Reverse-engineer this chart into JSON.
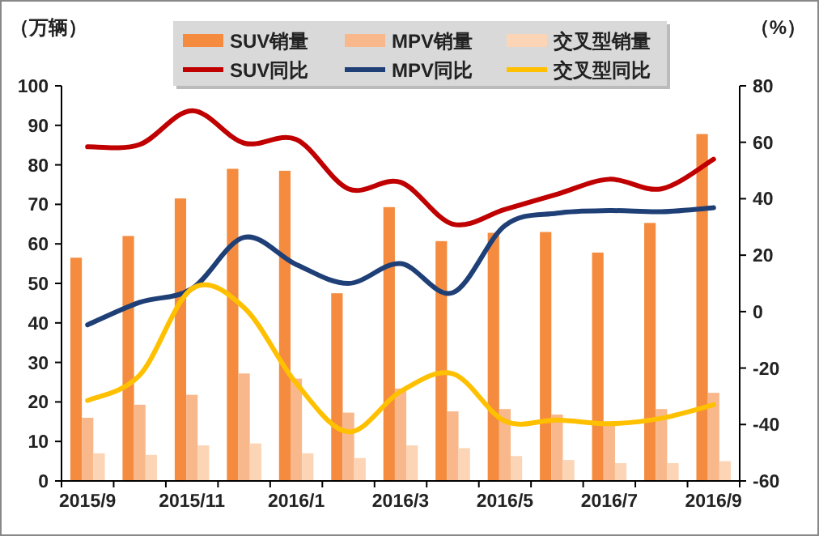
{
  "chart_data": {
    "type": "bar",
    "ylabel": "（万辆）",
    "y2label": "（%）",
    "categories": [
      "2015/9",
      null,
      "2015/11",
      null,
      "2016/1",
      null,
      "2016/3",
      null,
      "2016/5",
      null,
      "2016/7",
      null,
      "2016/9"
    ],
    "series": [
      {
        "name": "SUV销量",
        "color": "#f58b3e",
        "values": [
          56.5,
          62,
          71.5,
          79,
          78.5,
          47.5,
          69.3,
          60.7,
          62.8,
          63,
          57.8,
          65.3,
          87.8
        ]
      },
      {
        "name": "MPV销量",
        "color": "#f8b88b",
        "values": [
          16,
          19.3,
          21.8,
          27.2,
          25.9,
          17.3,
          23.4,
          17.6,
          18.2,
          16.8,
          14.3,
          18.2,
          22.3
        ]
      },
      {
        "name": "交叉型销量",
        "color": "#fbd5b5",
        "values": [
          7,
          6.6,
          9,
          9.5,
          7,
          5.8,
          9,
          8.3,
          6.3,
          5.3,
          4.5,
          4.5,
          5
        ]
      },
      {
        "name": "SUV同比",
        "type": "line",
        "axis": "y2",
        "color": "#c00000",
        "values": [
          58.4,
          59.2,
          71.2,
          59.7,
          61,
          43.5,
          45.8,
          31,
          36.2,
          41.6,
          46.9,
          43.5,
          54
        ]
      },
      {
        "name": "MPV同比",
        "type": "line",
        "axis": "y2",
        "color": "#1f3f77",
        "values": [
          -4.7,
          3.3,
          8.1,
          26.3,
          16.7,
          10,
          17,
          6.7,
          30.5,
          34.9,
          35.8,
          35.4,
          36.8
        ]
      },
      {
        "name": "交叉型同比",
        "type": "line",
        "axis": "y2",
        "color": "#ffc000",
        "values": [
          -31.5,
          -22.5,
          8.1,
          1.4,
          -25.4,
          -42.6,
          -28.3,
          -22,
          -38.8,
          -38.4,
          -39.7,
          -37.8,
          -33
        ]
      }
    ],
    "ylim": [
      0,
      100
    ],
    "yticks": [
      0,
      10,
      20,
      30,
      40,
      50,
      60,
      70,
      80,
      90,
      100
    ],
    "y2lim": [
      -60,
      80
    ],
    "y2ticks": [
      -60,
      -40,
      -20,
      0,
      20,
      40,
      60,
      80
    ],
    "grid": false,
    "legend": "top"
  }
}
